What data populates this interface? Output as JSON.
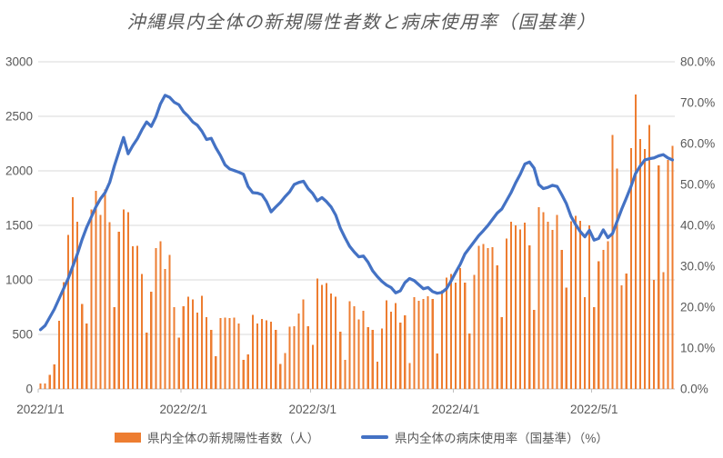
{
  "title": "沖縄県内全体の新規陽性者数と病床使用率（国基準）",
  "colors": {
    "bar": "#ED7D31",
    "line": "#4472C4",
    "grid": "#D9D9D9",
    "axis_line": "#BFBFBF",
    "axis_text": "#595959",
    "title_text": "#595959"
  },
  "legend": {
    "items": [
      {
        "label": "県内全体の新規陽性者数（人）",
        "marker": "bar-swatch"
      },
      {
        "label": "県内全体の病床使用率（国基準）（%）",
        "marker": "line-swatch"
      }
    ]
  },
  "chart_data": {
    "type": "combo-bar-line",
    "x_unit": "day",
    "x_start": "2022/1/1",
    "x_tick_labels": [
      "2022/1/1",
      "2022/2/1",
      "2022/3/1",
      "2022/4/1",
      "2022/5/1"
    ],
    "x_tick_day_index": [
      0,
      31,
      59,
      90,
      120
    ],
    "grid": "horizontal",
    "legend_position": "bottom",
    "y_left": {
      "min": 0,
      "max": 3000,
      "step": 500,
      "ticks": [
        "0",
        "500",
        "1000",
        "1500",
        "2000",
        "2500",
        "3000"
      ]
    },
    "y_right": {
      "min": 0,
      "max": 80,
      "step": 10,
      "ticks": [
        "0.0%",
        "10.0%",
        "20.0%",
        "30.0%",
        "40.0%",
        "50.0%",
        "60.0%",
        "70.0%",
        "80.0%"
      ]
    },
    "series": [
      {
        "name": "県内全体の新規陽性者数（人）",
        "type": "bar",
        "axis": "left",
        "values": [
          52,
          51,
          130,
          225,
          623,
          981,
          1414,
          1759,
          1533,
          779,
          600,
          1644,
          1817,
          1596,
          1829,
          1530,
          752,
          1443,
          1644,
          1620,
          1310,
          1313,
          1056,
          515,
          890,
          1290,
          1355,
          1100,
          1230,
          750,
          470,
          760,
          845,
          820,
          700,
          855,
          660,
          540,
          300,
          650,
          655,
          650,
          655,
          600,
          265,
          315,
          680,
          600,
          640,
          630,
          615,
          540,
          230,
          330,
          570,
          575,
          690,
          822,
          573,
          403,
          1014,
          956,
          970,
          874,
          847,
          526,
          268,
          806,
          759,
          636,
          718,
          567,
          540,
          252,
          553,
          814,
          710,
          786,
          608,
          677,
          238,
          840,
          810,
          824,
          851,
          824,
          324,
          905,
          1022,
          1054,
          973,
          1108,
          973,
          508,
          1047,
          1311,
          1331,
          1291,
          1301,
          1133,
          660,
          1380,
          1533,
          1500,
          1463,
          1525,
          1316,
          723,
          1665,
          1620,
          1532,
          1457,
          1594,
          1274,
          930,
          1537,
          1587,
          1540,
          840,
          1500,
          750,
          1170,
          1275,
          1355,
          2330,
          2020,
          950,
          1060,
          2210,
          2700,
          2290,
          2200,
          2420,
          1000,
          2050,
          1070,
          2100,
          2230
        ]
      },
      {
        "name": "県内全体の病床使用率（国基準）（%）",
        "type": "line",
        "axis": "right",
        "values": [
          14.5,
          15.5,
          17.5,
          19.5,
          22.0,
          24.5,
          27.0,
          30.0,
          33.0,
          36.5,
          39.5,
          42.0,
          44.5,
          46.5,
          48.0,
          50.5,
          54.5,
          58.0,
          61.5,
          57.5,
          59.5,
          61.2,
          63.4,
          65.3,
          64.2,
          66.5,
          69.7,
          71.8,
          71.3,
          70.1,
          69.5,
          67.8,
          66.7,
          65.3,
          64.5,
          63.0,
          61.0,
          61.3,
          59.0,
          57.1,
          54.8,
          53.8,
          53.4,
          53.0,
          52.5,
          49.5,
          48.0,
          47.9,
          47.5,
          45.8,
          43.3,
          44.5,
          45.6,
          47.0,
          48.2,
          50.0,
          50.5,
          50.8,
          49.0,
          47.8,
          46.0,
          46.8,
          45.8,
          44.5,
          42.5,
          39.3,
          37.0,
          34.9,
          33.5,
          32.3,
          32.5,
          31.0,
          28.9,
          27.5,
          26.3,
          25.4,
          24.8,
          23.5,
          24.0,
          26.0,
          27.0,
          26.5,
          25.5,
          24.5,
          24.8,
          23.8,
          23.4,
          23.6,
          24.5,
          26.4,
          28.5,
          30.5,
          33.0,
          34.5,
          36.0,
          37.5,
          38.7,
          40.0,
          41.5,
          43.0,
          44.0,
          46.0,
          48.0,
          50.4,
          52.5,
          55.0,
          55.5,
          54.0,
          50.0,
          49.0,
          49.3,
          49.8,
          49.5,
          47.5,
          45.3,
          42.2,
          40.2,
          38.5,
          37.2,
          38.8,
          36.4,
          36.8,
          38.9,
          37.0,
          38.0,
          41.0,
          44.0,
          46.7,
          49.5,
          52.7,
          54.5,
          56.0,
          56.3,
          56.5,
          57.0,
          57.3,
          56.5,
          56.0
        ]
      }
    ]
  }
}
